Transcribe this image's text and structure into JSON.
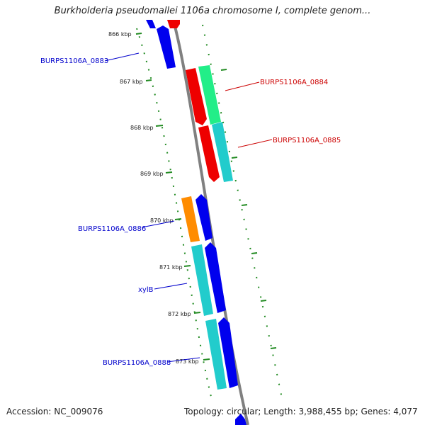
{
  "title": "Burkholderia pseudomallei 1106a chromosome I, complete genom...",
  "ticks": [
    "866 kbp",
    "867 kbp",
    "868 kbp",
    "869 kbp",
    "870 kbp",
    "871 kbp",
    "872 kbp",
    "873 kbp"
  ],
  "genes": [
    {
      "id": "BURPS1106A_0883",
      "color": "#0000ee",
      "label_color": "#0000cc",
      "strand": "forward"
    },
    {
      "id": "BURPS1106A_0884",
      "color": "#ee0000",
      "label_color": "#cc0000",
      "strand": "reverse"
    },
    {
      "id": "BURPS1106A_0885",
      "color": "#ee0000",
      "label_color": "#cc0000",
      "strand": "reverse"
    },
    {
      "id": "BURPS1106A_0886",
      "color": "#ff8c00",
      "label_color": "#0000cc",
      "strand": "forward"
    },
    {
      "id": "xylB",
      "color": "#0000ee",
      "label_color": "#0000cc",
      "strand": "forward"
    },
    {
      "id": "BURPS1106A_0888",
      "color": "#0000ee",
      "label_color": "#0000cc",
      "strand": "forward"
    }
  ],
  "feature_colors": {
    "backbone": "#808080",
    "tick": "#228b22",
    "cog_green": "#22ee88",
    "cog_teal": "#22cccc"
  },
  "footer": {
    "accession": "Accession: NC_009076",
    "summary": "Topology: circular; Length: 3,988,455 bp; Genes: 4,077"
  }
}
